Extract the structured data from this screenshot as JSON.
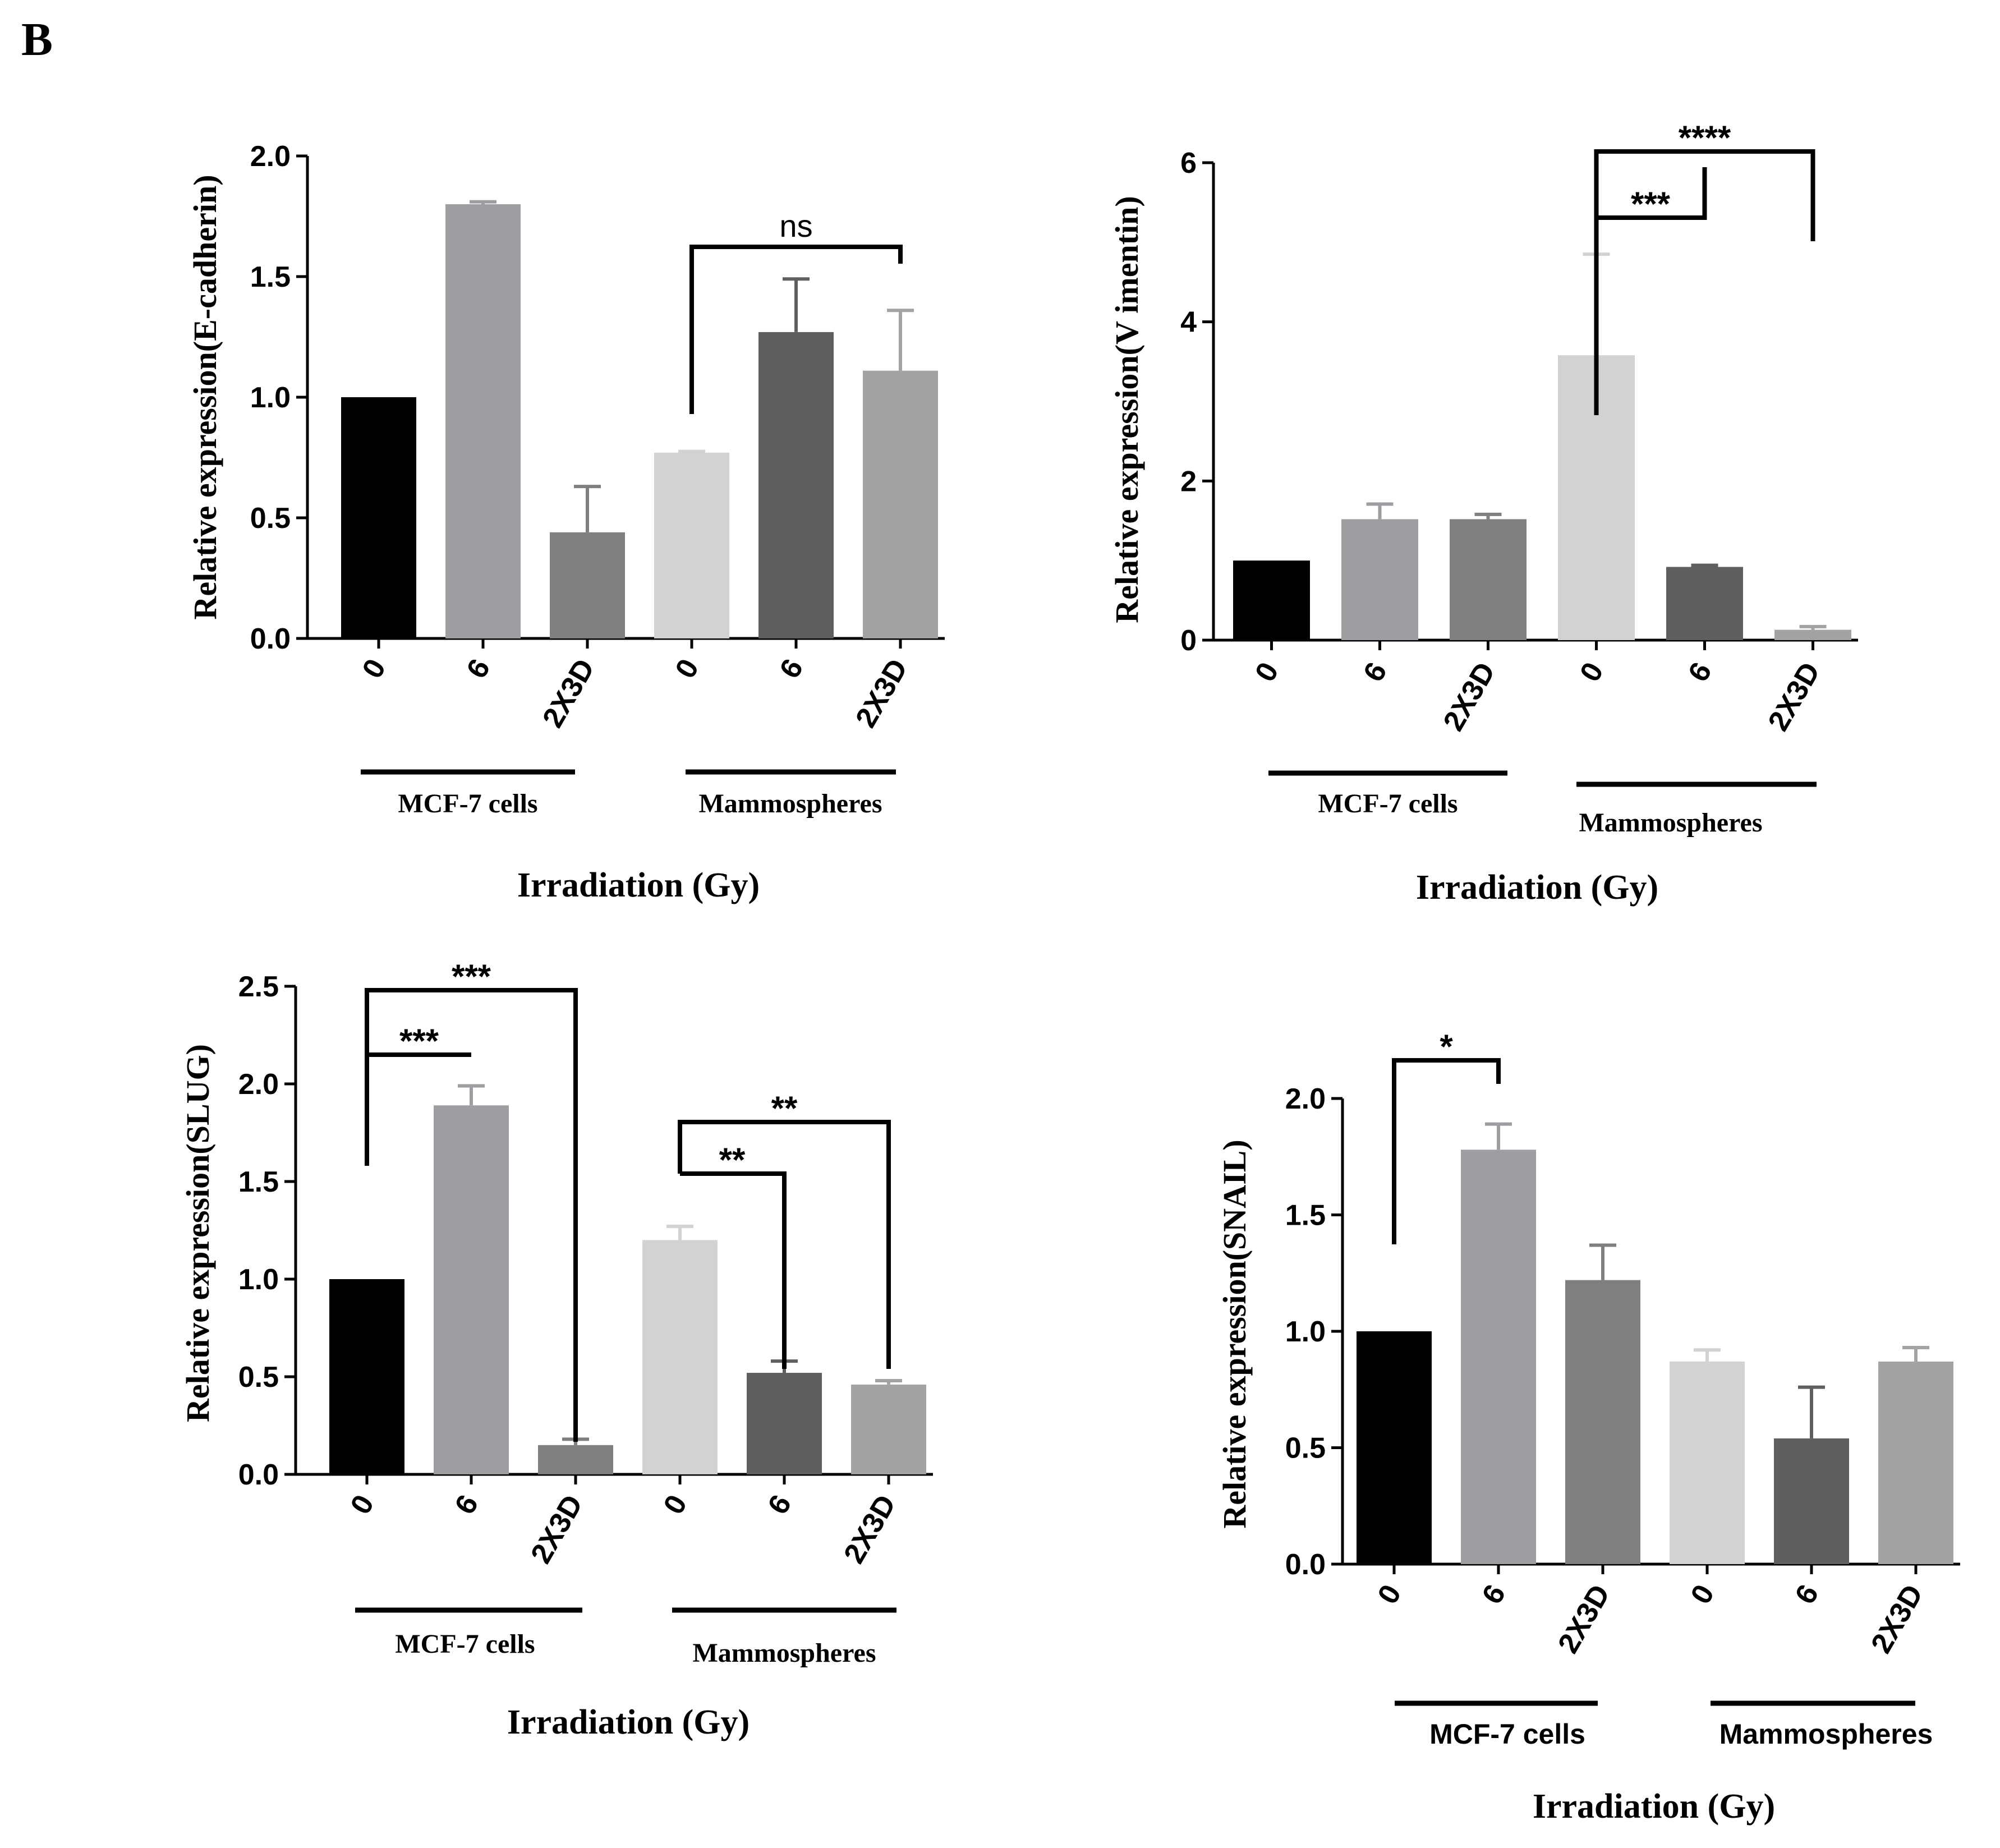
{
  "panel_label": "B",
  "chart_data": [
    {
      "id": "ecad",
      "type": "bar",
      "title": "",
      "ylabel": "Relative expression(E-cadherin)",
      "xlabel": "Irradiation (Gy)",
      "ylim": [
        0,
        2.0
      ],
      "yticks": [
        "0.0",
        "0.5",
        "1.0",
        "1.5",
        "2.0"
      ],
      "ytick_values": [
        0,
        0.5,
        1.0,
        1.5,
        2.0
      ],
      "categories": [
        "0",
        "6",
        "2X3D",
        "0",
        "6",
        "2X3D"
      ],
      "values": [
        1.0,
        1.8,
        0.44,
        0.77,
        1.27,
        1.11
      ],
      "errors": [
        0,
        0.01,
        0.19,
        0.005,
        0.22,
        0.25
      ],
      "colors": [
        "#000000",
        "#9e9ea2",
        "#7f7f7f",
        "#d2d2d2",
        "#5f5f5f",
        "#a3a3a5"
      ],
      "groups": [
        {
          "label": "MCF-7 cells",
          "start": 0,
          "end": 2
        },
        {
          "label": "Mammospheres",
          "start": 3,
          "end": 5
        }
      ],
      "significance": [
        {
          "from": 3,
          "to": 5,
          "label": "ns"
        }
      ]
    },
    {
      "id": "vim",
      "type": "bar",
      "title": "",
      "ylabel": "Relative expression(V imentin)",
      "xlabel": "Irradiation (Gy)",
      "ylim": [
        0,
        6
      ],
      "yticks": [
        "0",
        "2",
        "4",
        "6"
      ],
      "ytick_values": [
        0,
        2,
        4,
        6
      ],
      "categories": [
        "0",
        "6",
        "2X3D",
        "0",
        "6",
        "2X3D"
      ],
      "values": [
        1.0,
        1.52,
        1.52,
        3.58,
        0.92,
        0.13
      ],
      "errors": [
        0,
        0.19,
        0.06,
        1.27,
        0.02,
        0.04
      ],
      "colors": [
        "#000000",
        "#9e9ea2",
        "#7f7f7f",
        "#d2d2d2",
        "#5f5f5f",
        "#a3a3a5"
      ],
      "groups": [
        {
          "label": "MCF-7 cells",
          "start": 0,
          "end": 2
        },
        {
          "label": "Mammospheres",
          "start": 3,
          "end": 5
        }
      ],
      "significance": [
        {
          "from": 3,
          "to": 4,
          "label": "***"
        },
        {
          "from": 3,
          "to": 5,
          "label": "****"
        }
      ]
    },
    {
      "id": "slug",
      "type": "bar",
      "title": "",
      "ylabel": "Relative expression(SLUG)",
      "xlabel": "Irradiation (Gy)",
      "ylim": [
        0,
        2.5
      ],
      "yticks": [
        "0.0",
        "0.5",
        "1.0",
        "1.5",
        "2.0",
        "2.5"
      ],
      "ytick_values": [
        0,
        0.5,
        1.0,
        1.5,
        2.0,
        2.5
      ],
      "categories": [
        "0",
        "6",
        "2X3D",
        "0",
        "6",
        "2X3D"
      ],
      "values": [
        1.0,
        1.89,
        0.15,
        1.2,
        0.52,
        0.46
      ],
      "errors": [
        0,
        0.1,
        0.03,
        0.07,
        0.06,
        0.02
      ],
      "colors": [
        "#000000",
        "#9e9ea2",
        "#7f7f7f",
        "#d2d2d2",
        "#5f5f5f",
        "#a3a3a5"
      ],
      "groups": [
        {
          "label": "MCF-7 cells",
          "start": 0,
          "end": 2
        },
        {
          "label": "Mammospheres",
          "start": 3,
          "end": 5
        }
      ],
      "significance": [
        {
          "from": 0,
          "to": 1,
          "label": "***"
        },
        {
          "from": 0,
          "to": 2,
          "label": "***"
        },
        {
          "from": 3,
          "to": 4,
          "label": "**"
        },
        {
          "from": 3,
          "to": 5,
          "label": "**"
        }
      ]
    },
    {
      "id": "snail",
      "type": "bar",
      "title": "",
      "ylabel": "Relative expression(SNAIL)",
      "xlabel": "Irradiation (Gy)",
      "ylim": [
        0,
        2.0
      ],
      "yticks": [
        "0.0",
        "0.5",
        "1.0",
        "1.5",
        "2.0"
      ],
      "ytick_values": [
        0,
        0.5,
        1.0,
        1.5,
        2.0
      ],
      "categories": [
        "0",
        "6",
        "2X3D",
        "0",
        "6",
        "2X3D"
      ],
      "values": [
        1.0,
        1.78,
        1.22,
        0.87,
        0.54,
        0.87
      ],
      "errors": [
        0,
        0.11,
        0.15,
        0.05,
        0.22,
        0.06
      ],
      "colors": [
        "#000000",
        "#9e9ea2",
        "#7f7f7f",
        "#d2d2d2",
        "#5f5f5f",
        "#a3a3a5"
      ],
      "groups": [
        {
          "label": "MCF-7 cells",
          "start": 0,
          "end": 2
        },
        {
          "label": "Mammospheres",
          "start": 3,
          "end": 5
        }
      ],
      "significance": [
        {
          "from": 0,
          "to": 1,
          "label": "*"
        }
      ]
    }
  ]
}
